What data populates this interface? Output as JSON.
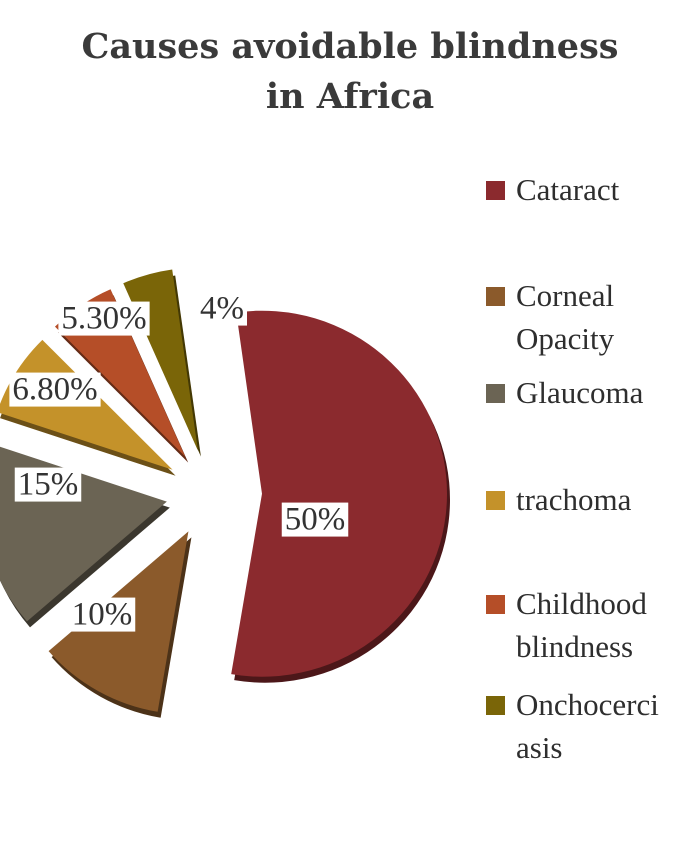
{
  "chart_data": {
    "type": "pie",
    "title": "Causes avoidable blindness in Africa",
    "title_lines": [
      "Causes avoidable blindness",
      "in Africa"
    ],
    "categories": [
      "Cataract",
      "Corneal Opacity",
      "Glaucoma",
      "trachoma",
      "Childhood blindness",
      "Onchocerciasis"
    ],
    "legend_lines": [
      [
        "Cataract"
      ],
      [
        "Corneal",
        "Opacity"
      ],
      [
        "Glaucoma"
      ],
      [
        "trachoma"
      ],
      [
        "Childhood",
        "blindness"
      ],
      [
        "Onchocerci",
        "asis"
      ]
    ],
    "values": [
      50,
      10,
      15,
      6.8,
      5.3,
      4
    ],
    "data_labels": [
      "50%",
      "10%",
      "15%",
      "6.80%",
      "5.30%",
      "4%"
    ],
    "colors": [
      "#8b2a2e",
      "#8b5a2b",
      "#6b6454",
      "#c4922a",
      "#b54e28",
      "#7a6508"
    ],
    "exploded": true,
    "legend_position": "right"
  }
}
